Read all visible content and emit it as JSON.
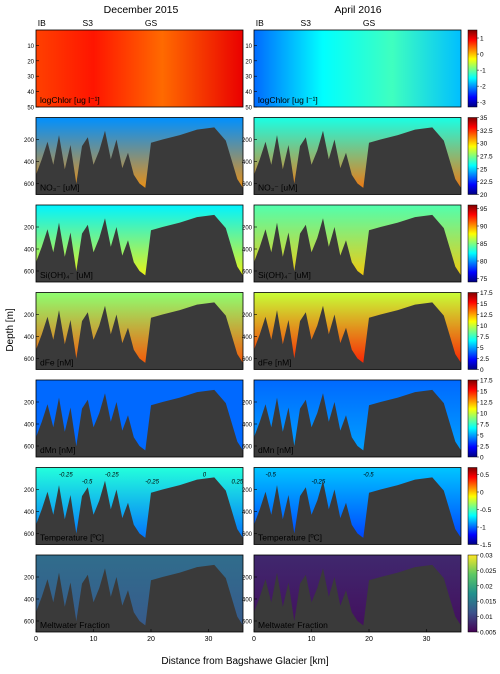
{
  "figure": {
    "col_titles": [
      "December 2015",
      "April 2016"
    ],
    "site_labels": [
      "IB",
      "S3",
      "GS"
    ],
    "site_km": [
      1,
      9,
      20
    ],
    "ylabel": "Depth [m]",
    "xlabel": "Distance from Bagshawe Glacier [km]",
    "x_ticks": [
      "0",
      "10",
      "20",
      "30"
    ]
  },
  "chart_data": [
    {
      "type": "heatmap",
      "panel": "logChlor",
      "label": "logChlor [ug l⁻¹]",
      "depth_range_m": [
        0,
        50
      ],
      "y_ticks": [
        10,
        20,
        30,
        40,
        50
      ],
      "x_range_km": [
        0,
        36
      ],
      "colorbar_ticks": [
        "1",
        "0",
        "-1",
        "-2",
        "-3"
      ],
      "colorbar_range": [
        -3.3,
        1.5
      ],
      "colormap": "jet",
      "has_seafloor": false,
      "columns": [
        {
          "title": "December 2015",
          "value_stops": [
            [
              0,
              0.6
            ],
            [
              10,
              0.8
            ],
            [
              22,
              0.4
            ],
            [
              36,
              1.0
            ]
          ]
        },
        {
          "title": "April 2016",
          "value_stops": [
            [
              0,
              -2.2
            ],
            [
              12,
              -1.5
            ],
            [
              24,
              -1.2
            ],
            [
              36,
              -1.8
            ]
          ]
        }
      ]
    },
    {
      "type": "heatmap",
      "panel": "NO3",
      "label": "NO₃⁻ [uM]",
      "depth_range_m": [
        0,
        700
      ],
      "y_ticks": [
        200,
        400,
        600
      ],
      "x_range_km": [
        0,
        36
      ],
      "colorbar_ticks": [
        "35",
        "32.5",
        "30",
        "27.5",
        "25",
        "22.5",
        "20"
      ],
      "colorbar_range": [
        20,
        35
      ],
      "colormap": "jet",
      "has_seafloor": true,
      "columns": [
        {
          "title": "December 2015",
          "surface_value": 24,
          "deep_value": 31
        },
        {
          "title": "April 2016",
          "surface_value": 26,
          "deep_value": 31.5
        }
      ]
    },
    {
      "type": "heatmap",
      "panel": "SiOH4",
      "label": "Si(OH)₄⁻ [uM]",
      "depth_range_m": [
        0,
        700
      ],
      "y_ticks": [
        200,
        400,
        600
      ],
      "x_range_km": [
        0,
        36
      ],
      "colorbar_ticks": [
        "95",
        "90",
        "85",
        "80",
        "75"
      ],
      "colorbar_range": [
        74,
        96
      ],
      "colormap": "jet",
      "has_seafloor": true,
      "columns": [
        {
          "title": "December 2015",
          "surface_value": 82,
          "deep_value": 88
        },
        {
          "title": "April 2016",
          "surface_value": 84,
          "deep_value": 89
        }
      ]
    },
    {
      "type": "heatmap",
      "panel": "dFe",
      "label": "dFe [nM]",
      "depth_range_m": [
        0,
        700
      ],
      "y_ticks": [
        200,
        400,
        600
      ],
      "x_range_km": [
        0,
        36
      ],
      "colorbar_ticks": [
        "17.5",
        "15",
        "12.5",
        "10",
        "7.5",
        "5",
        "2.5",
        "0"
      ],
      "colorbar_range": [
        0,
        17.5
      ],
      "colormap": "jet",
      "has_seafloor": true,
      "columns": [
        {
          "title": "December 2015",
          "surface_value": 9,
          "deep_value": 14
        },
        {
          "title": "April 2016",
          "surface_value": 10,
          "deep_value": 15
        }
      ]
    },
    {
      "type": "heatmap",
      "panel": "dMn",
      "label": "dMn [nM]",
      "depth_range_m": [
        0,
        700
      ],
      "y_ticks": [
        200,
        400,
        600
      ],
      "x_range_km": [
        0,
        36
      ],
      "colorbar_ticks": [
        "17.5",
        "15",
        "12.5",
        "10",
        "7.5",
        "5",
        "2.5",
        "0"
      ],
      "colorbar_range": [
        0,
        17.5
      ],
      "colormap": "jet",
      "has_seafloor": true,
      "columns": [
        {
          "title": "December 2015",
          "surface_value": 4,
          "deep_value": 4
        },
        {
          "title": "April 2016",
          "surface_value": 4,
          "deep_value": 5
        }
      ]
    },
    {
      "type": "heatmap",
      "panel": "Temperature",
      "label": "Temperature [ºC]",
      "depth_range_m": [
        0,
        700
      ],
      "y_ticks": [
        200,
        400,
        600
      ],
      "x_range_km": [
        0,
        36
      ],
      "colorbar_ticks": [
        "0.5",
        "0",
        "-0.5",
        "-1",
        "-1.5"
      ],
      "colorbar_range": [
        -1.5,
        0.7
      ],
      "colormap": "jet",
      "has_seafloor": true,
      "columns": [
        {
          "title": "December 2015",
          "surface_value": -0.6,
          "deep_value": -1.0,
          "contours": [
            {
              "label": "-0.25",
              "x_km": 4
            },
            {
              "label": "-0.5",
              "x_km": 8
            },
            {
              "label": "-0.25",
              "x_km": 12
            },
            {
              "label": "-0.25",
              "x_km": 19
            },
            {
              "label": "0",
              "x_km": 29
            },
            {
              "label": "0.25",
              "x_km": 34
            }
          ]
        },
        {
          "title": "April 2016",
          "surface_value": -0.8,
          "deep_value": -1.1,
          "contours": [
            {
              "label": "-0.5",
              "x_km": 2
            },
            {
              "label": "-0.25",
              "x_km": 10
            },
            {
              "label": "-0.5",
              "x_km": 19
            },
            {
              "label": "0",
              "x_km": 30
            }
          ]
        }
      ]
    },
    {
      "type": "heatmap",
      "panel": "Meltwater",
      "label": "Meltwater Fraction",
      "depth_range_m": [
        0,
        700
      ],
      "y_ticks": [
        200,
        400,
        600
      ],
      "x_range_km": [
        0,
        36
      ],
      "colorbar_ticks": [
        "0.03",
        "0.025",
        "0.02",
        "0.015",
        "0.01",
        "0.005"
      ],
      "colorbar_range": [
        0.005,
        0.03
      ],
      "colormap": "viridis",
      "has_seafloor": true,
      "columns": [
        {
          "title": "December 2015",
          "surface_value": 0.014,
          "deep_value": 0.012
        },
        {
          "title": "April 2016",
          "surface_value": 0.008,
          "deep_value": 0.006
        }
      ]
    }
  ]
}
